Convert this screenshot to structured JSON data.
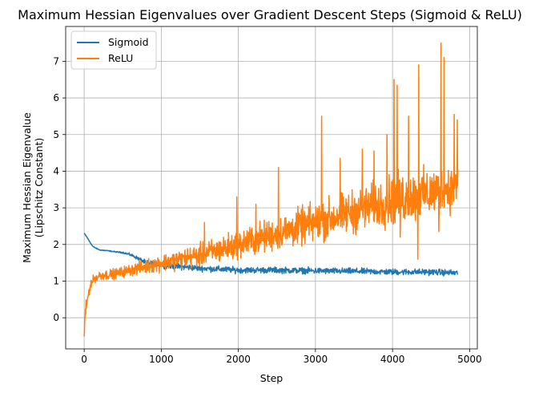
{
  "chart_data": {
    "type": "line",
    "title": "Maximum Hessian Eigenvalues over Gradient Descent Steps (Sigmoid & ReLU)",
    "xlabel": "Step",
    "ylabel_lines": [
      "Maximum Hessian Eigenvalue",
      "(Lipschitz Constant)"
    ],
    "xlim": [
      -240,
      5100
    ],
    "ylim": [
      -0.85,
      7.95
    ],
    "xticks": [
      0,
      1000,
      2000,
      3000,
      4000,
      5000
    ],
    "yticks": [
      0,
      1,
      2,
      3,
      4,
      5,
      6,
      7
    ],
    "grid": true,
    "legend_position": "upper-left",
    "series": [
      {
        "name": "Sigmoid",
        "color": "#1f77b4",
        "x": [
          0,
          20,
          50,
          80,
          110,
          150,
          200,
          300,
          400,
          500,
          600,
          700,
          800,
          1000,
          1200,
          1500,
          2000,
          2500,
          3000,
          3500,
          4000,
          4500,
          4850
        ],
        "y": [
          2.3,
          2.25,
          2.15,
          2.05,
          1.95,
          1.9,
          1.85,
          1.83,
          1.8,
          1.78,
          1.72,
          1.62,
          1.5,
          1.45,
          1.4,
          1.35,
          1.3,
          1.3,
          1.28,
          1.27,
          1.25,
          1.25,
          1.22
        ],
        "noise_amplitude": [
          0.02,
          0.02,
          0.02,
          0.02,
          0.02,
          0.02,
          0.02,
          0.02,
          0.02,
          0.03,
          0.05,
          0.07,
          0.1,
          0.12,
          0.12,
          0.12,
          0.12,
          0.12,
          0.12,
          0.12,
          0.12,
          0.12,
          0.12
        ]
      },
      {
        "name": "ReLU",
        "color": "#ff7f0e",
        "x": [
          0,
          10,
          30,
          50,
          80,
          120,
          200,
          400,
          600,
          800,
          1000,
          1500,
          2000,
          2500,
          3000,
          3500,
          4000,
          4500,
          4850
        ],
        "y": [
          -0.5,
          0.0,
          0.3,
          0.6,
          0.9,
          1.05,
          1.15,
          1.2,
          1.3,
          1.4,
          1.5,
          1.7,
          2.0,
          2.3,
          2.6,
          2.9,
          3.2,
          3.4,
          3.6
        ],
        "noise_amplitude": [
          0.15,
          0.25,
          0.25,
          0.2,
          0.15,
          0.12,
          0.15,
          0.15,
          0.18,
          0.22,
          0.25,
          0.35,
          0.45,
          0.5,
          0.6,
          0.65,
          0.75,
          0.75,
          0.7
        ],
        "spikes": [
          {
            "x": 1560,
            "y": 2.6
          },
          {
            "x": 1980,
            "y": 3.3
          },
          {
            "x": 2230,
            "y": 3.1
          },
          {
            "x": 2520,
            "y": 4.1
          },
          {
            "x": 3080,
            "y": 5.5
          },
          {
            "x": 3320,
            "y": 4.35
          },
          {
            "x": 3610,
            "y": 4.6
          },
          {
            "x": 3760,
            "y": 4.55
          },
          {
            "x": 3930,
            "y": 5.0
          },
          {
            "x": 4020,
            "y": 6.5
          },
          {
            "x": 4060,
            "y": 6.35
          },
          {
            "x": 4210,
            "y": 5.5
          },
          {
            "x": 4340,
            "y": 6.9
          },
          {
            "x": 4630,
            "y": 7.5
          },
          {
            "x": 4670,
            "y": 7.1
          },
          {
            "x": 4800,
            "y": 5.55
          },
          {
            "x": 4840,
            "y": 5.4
          }
        ],
        "dips": [
          {
            "x": 4330,
            "y": 1.6
          },
          {
            "x": 4100,
            "y": 2.2
          },
          {
            "x": 4600,
            "y": 2.35
          }
        ]
      }
    ]
  }
}
